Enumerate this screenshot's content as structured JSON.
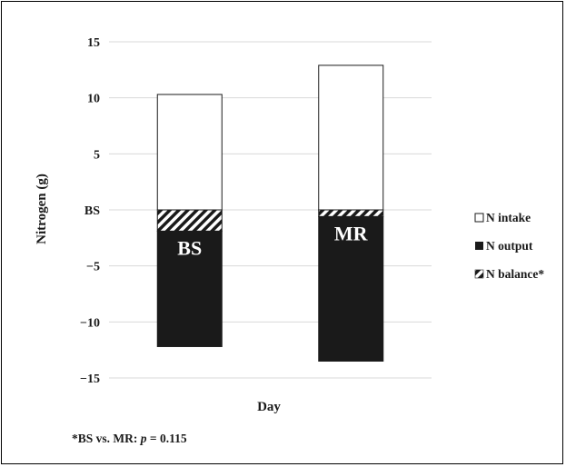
{
  "chart_data": {
    "type": "bar",
    "stacked": true,
    "categories": [
      "BS",
      "MR"
    ],
    "series": [
      {
        "name": "N intake",
        "values": [
          10.3,
          12.9
        ],
        "color": "#ffffff",
        "pattern": "none"
      },
      {
        "name": "N output",
        "values": [
          -12.2,
          -13.5
        ],
        "color": "#1a1a1a",
        "pattern": "solid"
      },
      {
        "name": "N balance*",
        "values": [
          1.9,
          0.6
        ],
        "color": "#1a1a1a",
        "pattern": "diagonal-hatch"
      }
    ],
    "ylabel": "Nitrogen (g)",
    "xlabel": "Day",
    "ylim": [
      -15,
      15
    ],
    "yticks": [
      "15",
      "10",
      "5",
      "BS",
      "−5",
      "−10",
      "−15"
    ],
    "ytick_values": [
      15,
      10,
      5,
      0,
      -5,
      -10,
      -15
    ],
    "bar_labels": [
      "BS",
      "MR"
    ],
    "grid": true,
    "legend_position": "right"
  },
  "footnote": {
    "prefix": "*BS vs. MR: ",
    "p": "p",
    "suffix": " = 0.115"
  }
}
